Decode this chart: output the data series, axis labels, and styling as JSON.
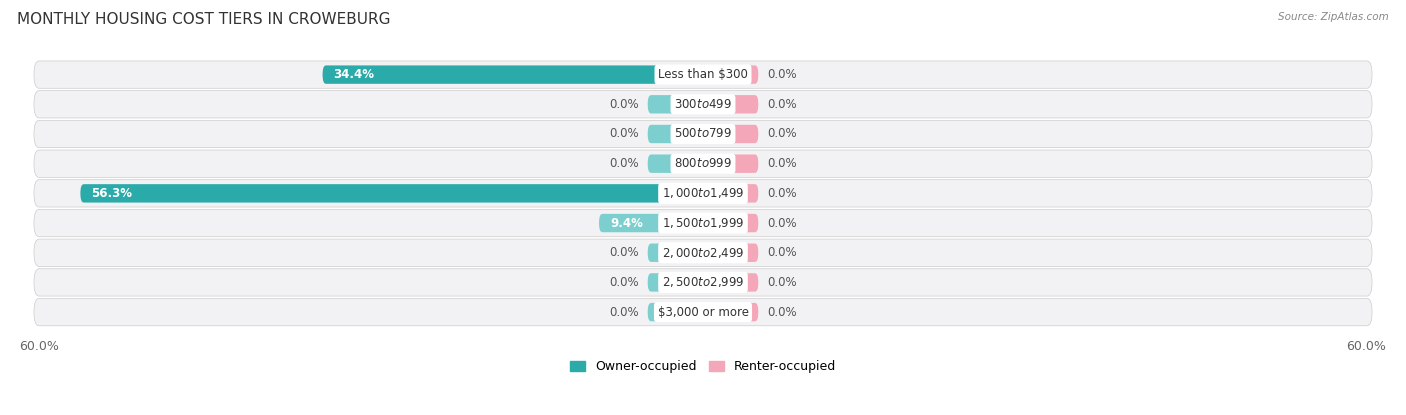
{
  "title": "MONTHLY HOUSING COST TIERS IN CROWEBURG",
  "source": "Source: ZipAtlas.com",
  "categories": [
    "Less than $300",
    "$300 to $499",
    "$500 to $799",
    "$800 to $999",
    "$1,000 to $1,499",
    "$1,500 to $1,999",
    "$2,000 to $2,499",
    "$2,500 to $2,999",
    "$3,000 or more"
  ],
  "owner_values": [
    34.4,
    0.0,
    0.0,
    0.0,
    56.3,
    9.4,
    0.0,
    0.0,
    0.0
  ],
  "renter_values": [
    0.0,
    0.0,
    0.0,
    0.0,
    0.0,
    0.0,
    0.0,
    0.0,
    0.0
  ],
  "owner_color_light": "#7DCFCF",
  "owner_color_dark": "#2BAAAA",
  "renter_color": "#F4A7B9",
  "row_bg_color": "#f0f0f0",
  "row_bg_alt": "#e8e8e8",
  "axis_limit": 60.0,
  "bar_height": 0.62,
  "min_bar_width": 5.0,
  "legend_label_owner": "Owner-occupied",
  "legend_label_renter": "Renter-occupied",
  "cat_label_fontsize": 8.5,
  "val_label_fontsize": 8.5
}
